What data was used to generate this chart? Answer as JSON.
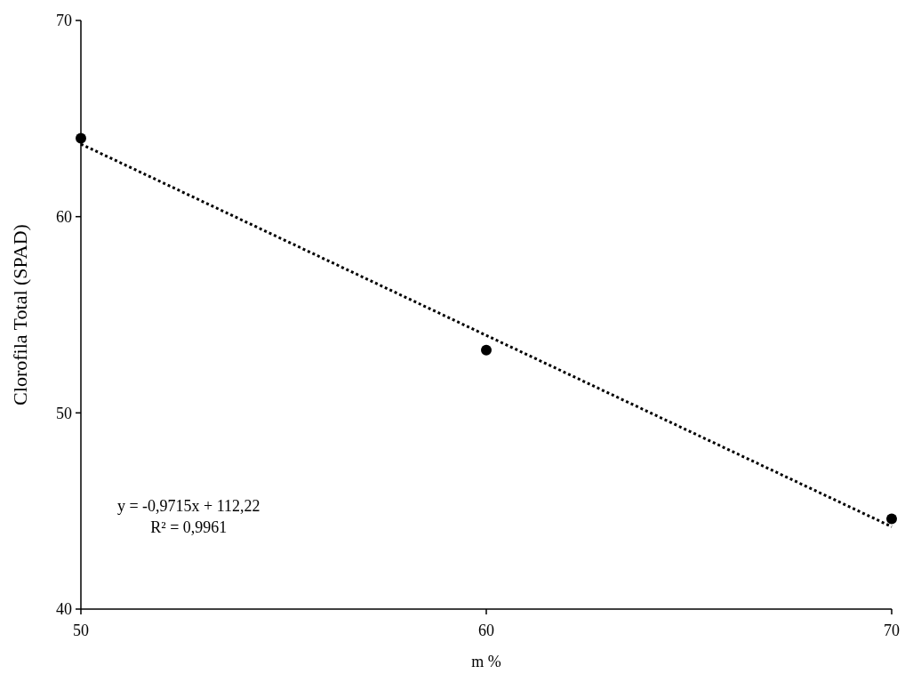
{
  "chart_data": {
    "type": "scatter",
    "xlabel": "m %",
    "ylabel": "Clorofila Total (SPAD)",
    "xlim": [
      50,
      70
    ],
    "xticks": [
      50,
      60,
      70
    ],
    "ylim": [
      40,
      70
    ],
    "yticks": [
      40,
      50,
      60,
      70
    ],
    "series": [
      {
        "color": "#000000",
        "marker": "circle",
        "x": [
          50,
          60,
          70
        ],
        "values": [
          64.0,
          53.2,
          44.6
        ]
      },
      {
        "type": "line",
        "color": "#000000",
        "line_style": "dotted",
        "x": [
          50,
          70
        ],
        "values": [
          63.7,
          44.2
        ]
      }
    ],
    "annotations": [
      "y = -0,9715x + 112,22",
      "R² = 0,9961"
    ]
  }
}
